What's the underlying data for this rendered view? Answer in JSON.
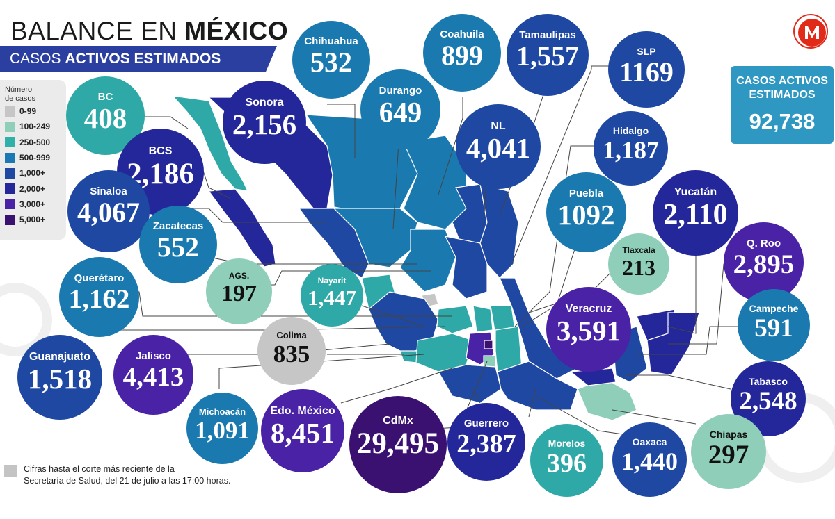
{
  "header": {
    "title_light": "BALANCE EN ",
    "title_bold": "MÉXICO",
    "subtitle_light": "CASOS ",
    "subtitle_bold": "ACTIVOS ESTIMADOS"
  },
  "logo": {
    "letter": "M",
    "icon": "milenio-logo-icon",
    "color": "#e12a1a"
  },
  "total": {
    "label_line1": "CASOS ACTIVOS",
    "label_line2": "ESTIMADOS",
    "value": "92,738"
  },
  "legend": {
    "title_line1": "Número",
    "title_line2": "de casos",
    "items": [
      {
        "label": "0-99",
        "color": "#c6c6c6"
      },
      {
        "label": "100-249",
        "color": "#8fcfb9"
      },
      {
        "label": "250-500",
        "color": "#2fb1a9"
      },
      {
        "label": "500-999",
        "color": "#1a79b4"
      },
      {
        "label": "1,000+",
        "color": "#1f48a3"
      },
      {
        "label": "2,000+",
        "color": "#24279a"
      },
      {
        "label": "3,000+",
        "color": "#4a22a6"
      },
      {
        "label": "5,000+",
        "color": "#3a1170"
      }
    ]
  },
  "states": [
    {
      "name": "BC",
      "value": "408",
      "color": "#2ea9a7"
    },
    {
      "name": "Sonora",
      "value": "2,156",
      "color": "#24279a"
    },
    {
      "name": "Chihuahua",
      "value": "532",
      "color": "#1a7ab0"
    },
    {
      "name": "Coahuila",
      "value": "899",
      "color": "#1a7ab0"
    },
    {
      "name": "Tamaulipas",
      "value": "1,557",
      "color": "#1f48a3"
    },
    {
      "name": "SLP",
      "value": "1169",
      "color": "#1f48a3"
    },
    {
      "name": "Durango",
      "value": "649",
      "color": "#1a7ab0"
    },
    {
      "name": "NL",
      "value": "4,041",
      "color": "#1f48a3"
    },
    {
      "name": "Hidalgo",
      "value": "1,187",
      "color": "#1f48a3"
    },
    {
      "name": "BCS",
      "value": "2,186",
      "color": "#24279a"
    },
    {
      "name": "Sinaloa",
      "value": "4,067",
      "color": "#1f48a3"
    },
    {
      "name": "Zacatecas",
      "value": "552",
      "color": "#1a7ab0"
    },
    {
      "name": "Puebla",
      "value": "1092",
      "color": "#1a7ab0"
    },
    {
      "name": "Yucatán",
      "value": "2,110",
      "color": "#24279a"
    },
    {
      "name": "Q. Roo",
      "value": "2,895",
      "color": "#4a22a6"
    },
    {
      "name": "Tlaxcala",
      "value": "213",
      "color": "#8fcfb9"
    },
    {
      "name": "Querétaro",
      "value": "1,162",
      "color": "#1a7ab0"
    },
    {
      "name": "AGS.",
      "value": "197",
      "color": "#8fcfb9"
    },
    {
      "name": "Nayarit",
      "value": "1,447",
      "color": "#2ea9a7"
    },
    {
      "name": "Veracruz",
      "value": "3,591",
      "color": "#4a22a6"
    },
    {
      "name": "Campeche",
      "value": "591",
      "color": "#1a7ab0"
    },
    {
      "name": "Colima",
      "value": "835",
      "color": "#c6c6c6"
    },
    {
      "name": "Guanajuato",
      "value": "1,518",
      "color": "#1f48a3"
    },
    {
      "name": "Jalisco",
      "value": "4,413",
      "color": "#4a22a6"
    },
    {
      "name": "Tabasco",
      "value": "2,548",
      "color": "#24279a"
    },
    {
      "name": "Michoacán",
      "value": "1,091",
      "color": "#1a7ab0"
    },
    {
      "name": "Edo. México",
      "value": "8,451",
      "color": "#4a22a6"
    },
    {
      "name": "CdMx",
      "value": "29,495",
      "color": "#3a1170"
    },
    {
      "name": "Guerrero",
      "value": "2,387",
      "color": "#24279a"
    },
    {
      "name": "Morelos",
      "value": "396",
      "color": "#2ea9a7"
    },
    {
      "name": "Oaxaca",
      "value": "1,440",
      "color": "#1f48a3"
    },
    {
      "name": "Chiapas",
      "value": "297",
      "color": "#8fcfb9"
    }
  ],
  "footnote": {
    "line1": "Cifras hasta el corte más reciente de la",
    "line2": "Secretaría de Salud, del 21 de julio a las 17:00 horas."
  }
}
